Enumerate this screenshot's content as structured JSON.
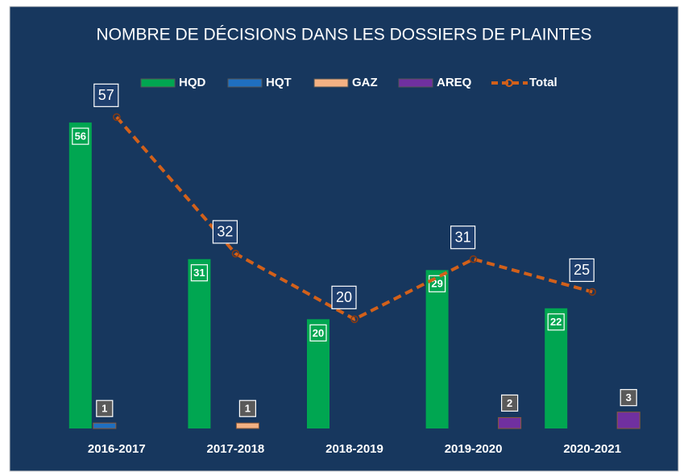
{
  "chart_data": {
    "type": "bar",
    "title": "NOMBRE DE DÉCISIONS DANS LES DOSSIERS DE PLAINTES",
    "categories": [
      "2016-2017",
      "2017-2018",
      "2018-2019",
      "2019-2020",
      "2020-2021"
    ],
    "series": [
      {
        "name": "HQD",
        "color": "#00a651",
        "type": "bar",
        "values": [
          56,
          31,
          20,
          29,
          22
        ]
      },
      {
        "name": "HQT",
        "color": "#1f6fc0",
        "type": "bar",
        "values": [
          1,
          null,
          null,
          null,
          null
        ]
      },
      {
        "name": "GAZ",
        "color": "#f4b183",
        "type": "bar",
        "values": [
          null,
          1,
          null,
          null,
          null
        ]
      },
      {
        "name": "AREQ",
        "color": "#7030a0",
        "type": "bar",
        "values": [
          null,
          null,
          null,
          2,
          3
        ]
      },
      {
        "name": "Total",
        "color": "#d2601a",
        "type": "line",
        "values": [
          57,
          32,
          20,
          31,
          25
        ]
      }
    ],
    "ylim": [
      0,
      60
    ]
  }
}
